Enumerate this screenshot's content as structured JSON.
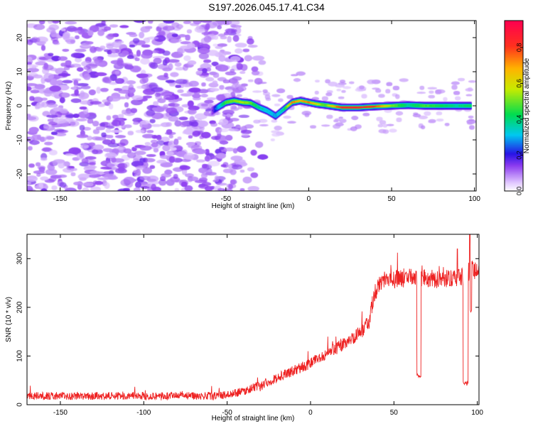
{
  "title": "S197.2026.045.17.41.C34",
  "chart_data": [
    {
      "type": "heatmap",
      "title": "S197.2026.045.17.41.C34",
      "xlabel": "Height of straight line (km)",
      "ylabel": "Frequency (Hz)",
      "xlim": [
        -170,
        101
      ],
      "ylim": [
        -25,
        25
      ],
      "xticks": [
        -150,
        -100,
        -50,
        0,
        50,
        100
      ],
      "yticks": [
        -20,
        -10,
        0,
        10,
        20
      ],
      "colorbar": {
        "label": "Normalized spectral amplitude",
        "range": [
          0,
          0.95
        ],
        "ticks": [
          0.0,
          0.2,
          0.4,
          0.6,
          0.8
        ]
      },
      "noise_region": {
        "x": [
          -170,
          -50
        ],
        "amplitude_range": [
          0.05,
          0.15
        ]
      },
      "ridge": {
        "x": [
          -60,
          -55,
          -50,
          -45,
          -40,
          -35,
          -30,
          -25,
          -20,
          -15,
          -10,
          -5,
          0,
          5,
          10,
          20,
          30,
          40,
          50,
          60,
          70,
          80,
          90,
          98
        ],
        "frequency": [
          -2.0,
          -0.5,
          1.0,
          1.5,
          1.0,
          0.8,
          -0.5,
          -1.5,
          -3.0,
          -1.0,
          1.0,
          1.5,
          1.0,
          0.5,
          0.2,
          -0.5,
          -0.5,
          -0.2,
          0.0,
          0.2,
          0.0,
          0.0,
          0.0,
          0.0
        ],
        "amplitude": [
          0.05,
          0.3,
          0.5,
          0.55,
          0.6,
          0.5,
          0.4,
          0.35,
          0.3,
          0.4,
          0.8,
          0.7,
          0.8,
          0.6,
          0.5,
          0.9,
          0.92,
          0.85,
          0.55,
          0.4,
          0.5,
          0.45,
          0.4,
          0.45
        ]
      }
    },
    {
      "type": "line",
      "xlabel": "Height of straight line (km)",
      "ylabel": "SNR (10 * v/v)",
      "xlim": [
        -170,
        101
      ],
      "ylim": [
        0,
        350
      ],
      "xticks": [
        -150,
        -100,
        -50,
        0,
        50,
        100
      ],
      "yticks": [
        0,
        100,
        200,
        300
      ],
      "color": "#ee2222",
      "series": [
        {
          "name": "SNR",
          "x": [
            -170,
            -140,
            -110,
            -80,
            -60,
            -50,
            -40,
            -30,
            -20,
            -10,
            0,
            10,
            20,
            30,
            35,
            38,
            42,
            50,
            60,
            63,
            64,
            66,
            70,
            80,
            88,
            92,
            95,
            97,
            100
          ],
          "baseline": [
            18,
            18,
            18,
            18,
            18,
            20,
            28,
            40,
            55,
            70,
            85,
            105,
            125,
            148,
            170,
            225,
            255,
            258,
            262,
            262,
            258,
            262,
            260,
            258,
            262,
            266,
            272,
            278,
            270
          ],
          "noise_amplitude": 12
        }
      ],
      "dropouts": [
        {
          "x": 65,
          "min": 55,
          "width": 1.2
        },
        {
          "x": 93,
          "min": 40,
          "width": 1.6
        },
        {
          "x": 96,
          "min": 190,
          "width": 0.6
        }
      ],
      "spikes": [
        {
          "x": 95.5,
          "value": 350
        },
        {
          "x": 88,
          "value": 320
        }
      ]
    }
  ]
}
